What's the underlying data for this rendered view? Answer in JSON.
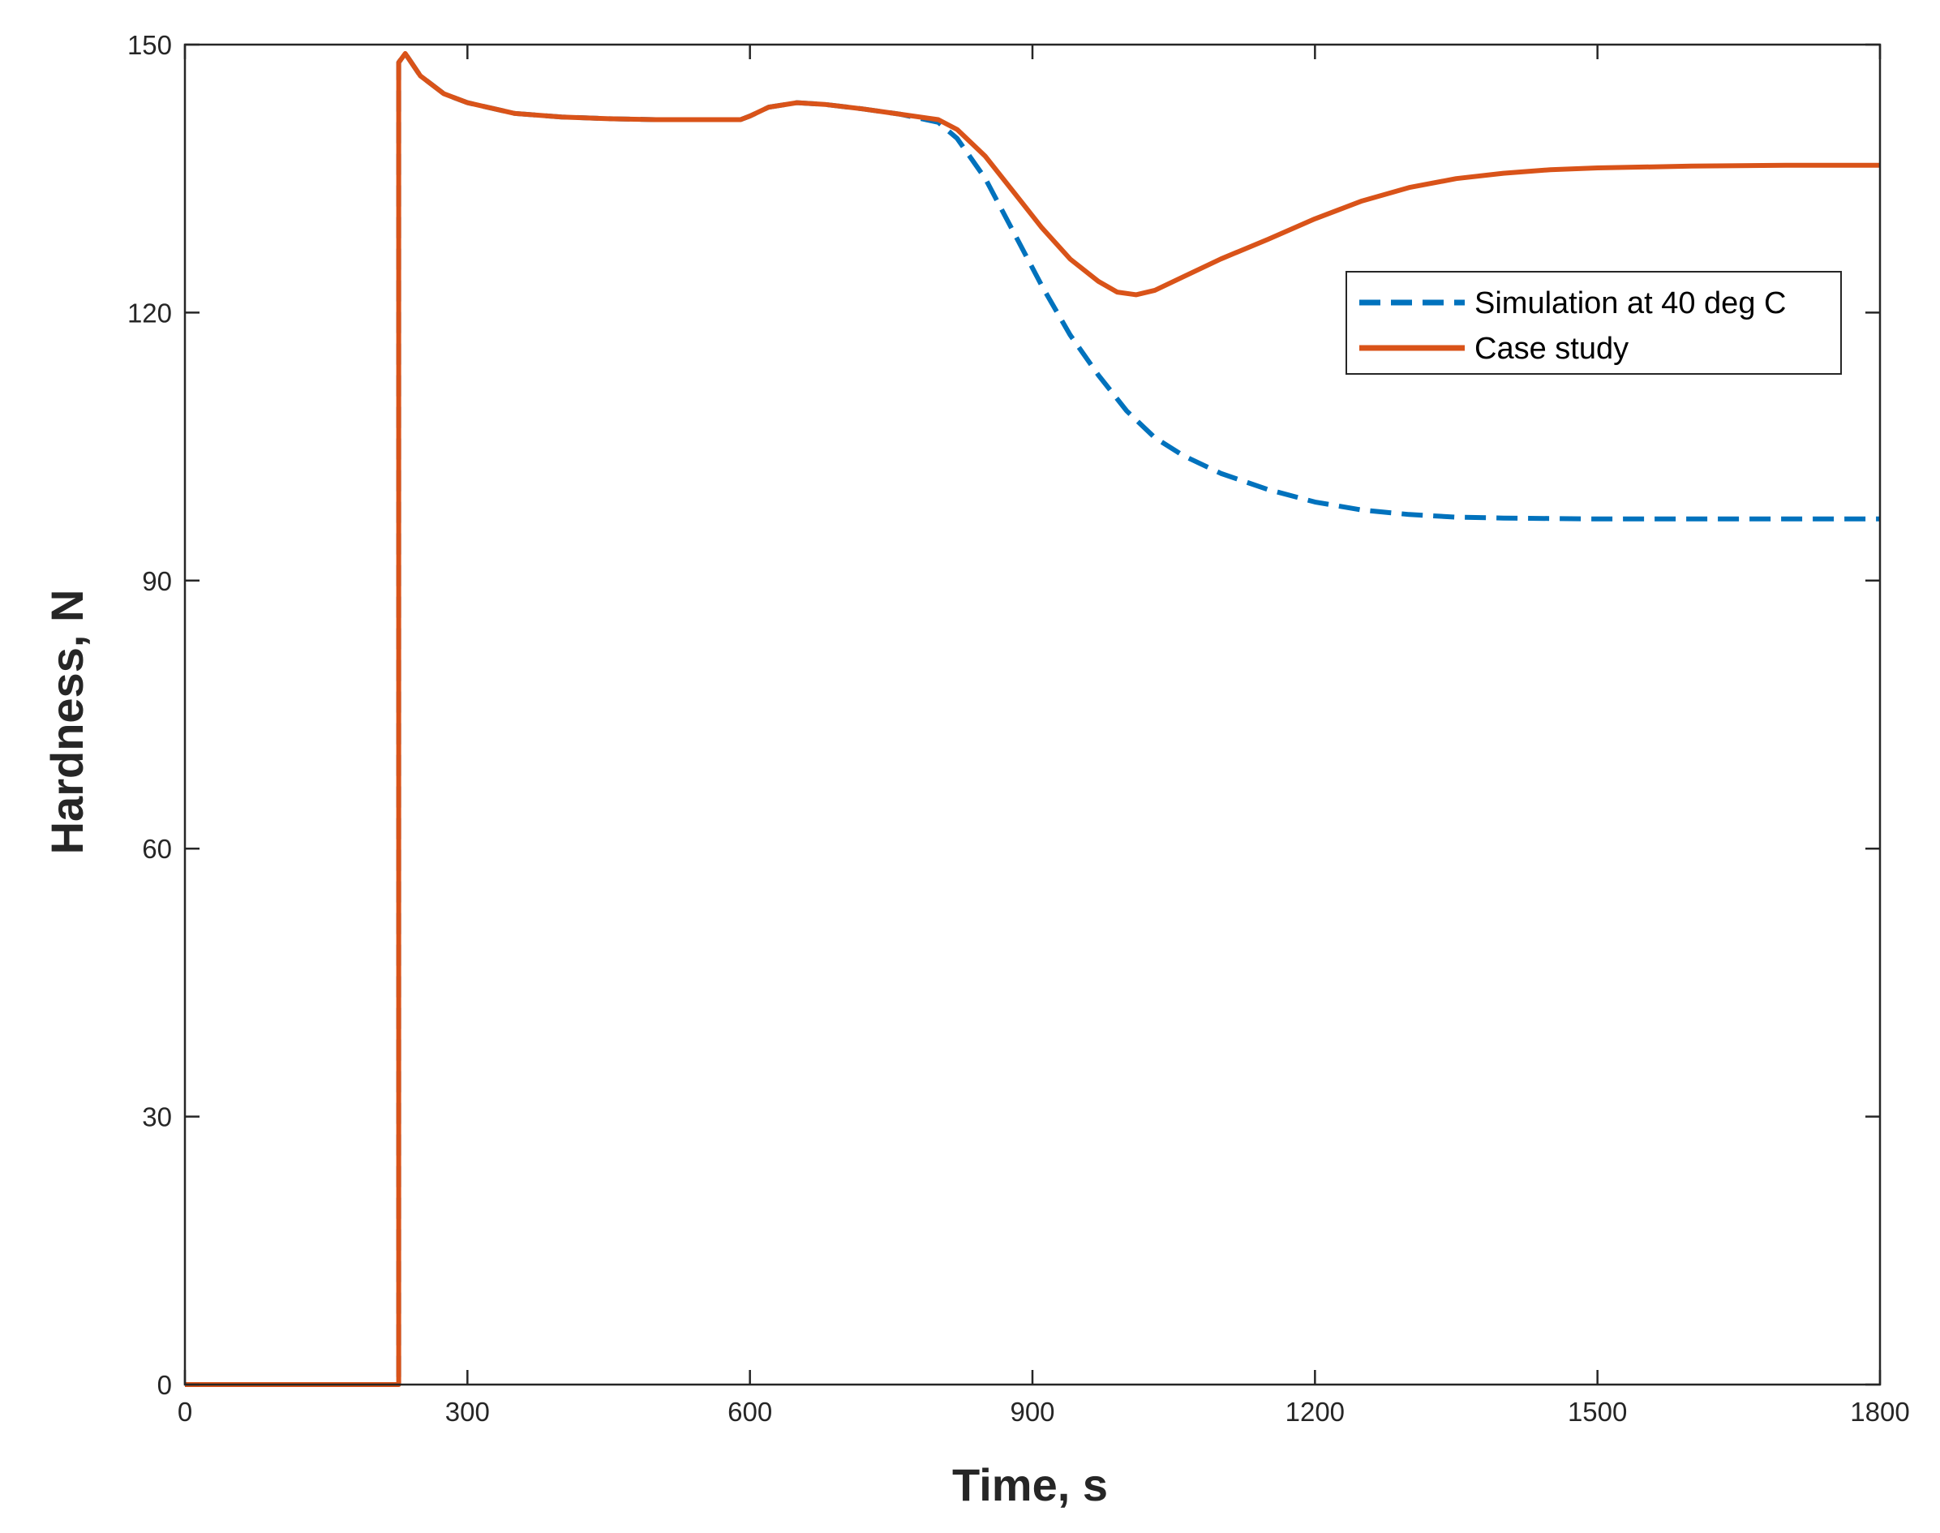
{
  "chart_data": {
    "type": "line",
    "xlabel": "Time, s",
    "ylabel": "Hardness, N",
    "xlim": [
      0,
      1800
    ],
    "ylim": [
      0,
      150
    ],
    "xticks": [
      0,
      300,
      600,
      900,
      1200,
      1500,
      1800
    ],
    "yticks": [
      0,
      30,
      60,
      90,
      120,
      150
    ],
    "grid": false,
    "box": true,
    "legend_position": "top-right (inside, below upper edge)",
    "series": [
      {
        "name": "Simulation at 40 deg C",
        "style": "dashed",
        "color": "#0072BD",
        "x": [
          0,
          227,
          227,
          234,
          250,
          275,
          300,
          350,
          400,
          450,
          500,
          550,
          590,
          600,
          620,
          650,
          680,
          720,
          760,
          800,
          820,
          850,
          880,
          910,
          940,
          970,
          1000,
          1030,
          1060,
          1100,
          1150,
          1200,
          1250,
          1300,
          1350,
          1400,
          1500,
          1600,
          1700,
          1800
        ],
        "y": [
          0,
          0,
          148,
          149,
          146.5,
          144.5,
          143.5,
          142.3,
          141.9,
          141.7,
          141.6,
          141.6,
          141.6,
          142.0,
          143.0,
          143.5,
          143.3,
          142.8,
          142.2,
          141.3,
          139.5,
          135,
          129,
          123,
          117.5,
          113,
          109,
          106,
          104,
          102,
          100.2,
          98.8,
          97.9,
          97.4,
          97.1,
          97.0,
          96.9,
          96.9,
          96.9,
          96.9
        ]
      },
      {
        "name": "Case study",
        "style": "solid",
        "color": "#D95319",
        "x": [
          0,
          227,
          227,
          234,
          250,
          275,
          300,
          350,
          400,
          450,
          500,
          550,
          590,
          600,
          620,
          650,
          680,
          720,
          760,
          800,
          820,
          850,
          880,
          910,
          940,
          970,
          990,
          1010,
          1030,
          1060,
          1100,
          1150,
          1200,
          1250,
          1300,
          1350,
          1400,
          1450,
          1500,
          1600,
          1700,
          1800
        ],
        "y": [
          0,
          0,
          148,
          149,
          146.5,
          144.5,
          143.5,
          142.3,
          141.9,
          141.7,
          141.6,
          141.6,
          141.6,
          142.0,
          143.0,
          143.5,
          143.3,
          142.8,
          142.2,
          141.6,
          140.5,
          137.5,
          133.5,
          129.5,
          126,
          123.5,
          122.3,
          122.0,
          122.5,
          124,
          126,
          128.2,
          130.5,
          132.5,
          134.0,
          135.0,
          135.6,
          136.0,
          136.2,
          136.4,
          136.5,
          136.5
        ]
      }
    ]
  }
}
